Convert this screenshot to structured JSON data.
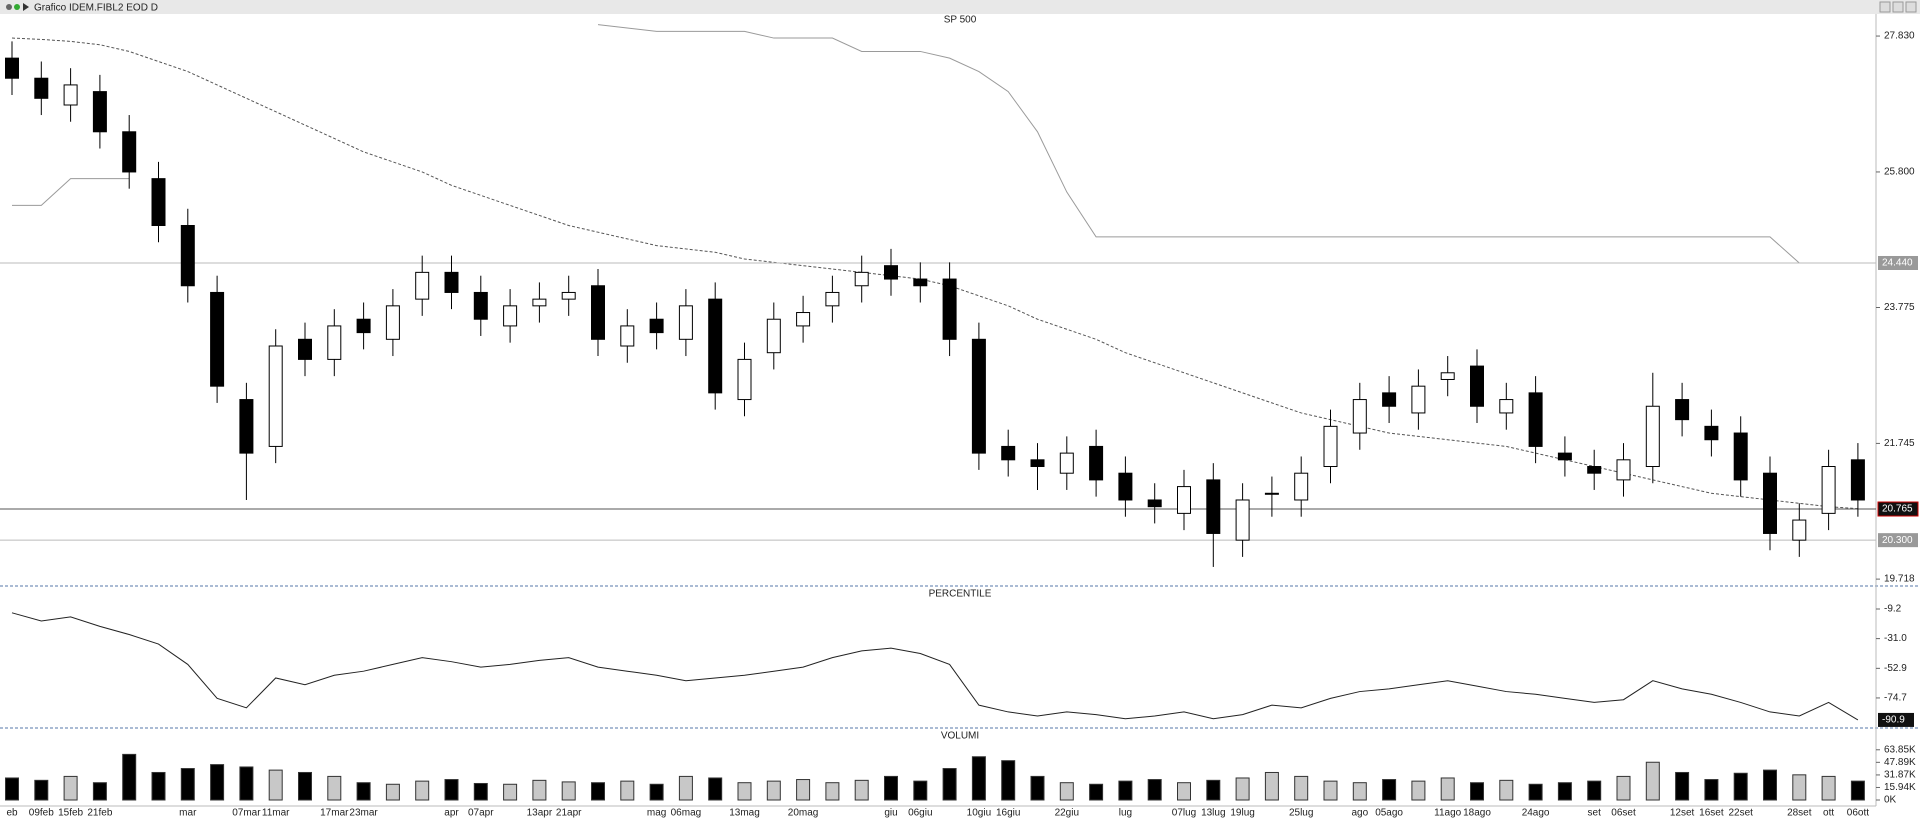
{
  "window": {
    "title": "Grafico IDEM.FIBL2 EOD D"
  },
  "chart_data": [
    {
      "type": "candlestick",
      "title": "SP 500",
      "categories": [
        "eb",
        "09feb",
        "15feb",
        "21feb",
        null,
        null,
        "mar",
        null,
        "07mar",
        "11mar",
        null,
        "17mar",
        "23mar",
        null,
        null,
        "apr",
        "07apr",
        null,
        "13apr",
        "21apr",
        null,
        null,
        "mag",
        "06mag",
        null,
        "13mag",
        null,
        "20mag",
        null,
        null,
        "giu",
        "06giu",
        null,
        "10giu",
        "16giu",
        null,
        "22giu",
        null,
        "lug",
        null,
        "07lug",
        "13lug",
        "19lug",
        null,
        "25lug",
        null,
        "ago",
        "05ago",
        null,
        "11ago",
        "18ago",
        null,
        "24ago",
        null,
        "set",
        "06set",
        null,
        "12set",
        "16set",
        "22set",
        null,
        "28set",
        "ott",
        "06ott"
      ],
      "open": [
        27.5,
        27.2,
        26.8,
        27.0,
        26.4,
        25.7,
        25.0,
        24.0,
        22.4,
        21.7,
        23.3,
        23.0,
        23.6,
        23.3,
        23.9,
        24.3,
        24.0,
        23.5,
        23.8,
        23.9,
        24.1,
        23.2,
        23.6,
        23.3,
        23.9,
        22.4,
        23.1,
        23.5,
        23.8,
        24.1,
        24.4,
        24.2,
        24.2,
        23.3,
        21.7,
        21.5,
        21.3,
        21.7,
        21.3,
        20.9,
        20.7,
        21.2,
        20.3,
        21.0,
        20.9,
        21.4,
        21.9,
        22.5,
        22.2,
        22.7,
        22.9,
        22.2,
        22.5,
        21.6,
        21.4,
        21.2,
        21.4,
        22.4,
        22.0,
        21.9,
        21.3,
        20.3,
        20.7,
        21.5
      ],
      "high": [
        27.75,
        27.45,
        27.35,
        27.25,
        26.65,
        25.95,
        25.25,
        24.25,
        22.65,
        23.45,
        23.55,
        23.75,
        23.85,
        24.05,
        24.55,
        24.55,
        24.25,
        24.05,
        24.15,
        24.25,
        24.35,
        23.75,
        23.85,
        24.05,
        24.15,
        23.25,
        23.85,
        23.95,
        24.25,
        24.55,
        24.65,
        24.45,
        24.45,
        23.55,
        21.95,
        21.75,
        21.85,
        21.95,
        21.55,
        21.15,
        21.35,
        21.45,
        21.15,
        21.25,
        21.55,
        22.25,
        22.65,
        22.75,
        22.85,
        23.05,
        23.15,
        22.65,
        22.75,
        21.85,
        21.65,
        21.75,
        22.8,
        22.65,
        22.25,
        22.15,
        21.55,
        20.85,
        21.65,
        21.75
      ],
      "low": [
        26.95,
        26.65,
        26.55,
        26.15,
        25.55,
        24.75,
        23.85,
        22.35,
        20.9,
        21.45,
        22.75,
        22.75,
        23.15,
        23.05,
        23.65,
        23.75,
        23.35,
        23.25,
        23.55,
        23.65,
        23.05,
        22.95,
        23.15,
        23.05,
        22.25,
        22.15,
        22.85,
        23.25,
        23.55,
        23.85,
        23.95,
        23.85,
        23.05,
        21.35,
        21.25,
        21.05,
        21.05,
        20.95,
        20.65,
        20.55,
        20.45,
        19.9,
        20.05,
        20.65,
        20.65,
        21.15,
        21.65,
        22.05,
        21.95,
        22.45,
        22.05,
        21.95,
        21.45,
        21.25,
        21.05,
        20.95,
        21.15,
        21.85,
        21.55,
        20.95,
        20.15,
        20.05,
        20.45,
        20.65
      ],
      "close": [
        27.2,
        26.9,
        27.1,
        26.4,
        25.8,
        25.0,
        24.1,
        22.6,
        21.6,
        23.2,
        23.0,
        23.5,
        23.4,
        23.8,
        24.3,
        24.0,
        23.6,
        23.8,
        23.9,
        24.0,
        23.3,
        23.5,
        23.4,
        23.8,
        22.5,
        23.0,
        23.6,
        23.7,
        24.0,
        24.3,
        24.2,
        24.1,
        23.3,
        21.6,
        21.5,
        21.4,
        21.6,
        21.2,
        20.9,
        20.8,
        21.1,
        20.4,
        20.9,
        21.0,
        21.3,
        22.0,
        22.4,
        22.3,
        22.6,
        22.8,
        22.3,
        22.4,
        21.7,
        21.5,
        21.3,
        21.5,
        22.3,
        22.1,
        21.8,
        21.2,
        20.4,
        20.6,
        21.4,
        20.9
      ],
      "ma": [
        27.8,
        27.78,
        27.75,
        27.7,
        27.6,
        27.45,
        27.3,
        27.1,
        26.9,
        26.7,
        26.5,
        26.3,
        26.1,
        25.95,
        25.8,
        25.6,
        25.45,
        25.3,
        25.15,
        25.0,
        24.9,
        24.8,
        24.7,
        24.65,
        24.6,
        24.5,
        24.45,
        24.4,
        24.35,
        24.3,
        24.25,
        24.2,
        24.1,
        23.95,
        23.8,
        23.6,
        23.45,
        23.3,
        23.1,
        22.95,
        22.8,
        22.65,
        22.5,
        22.35,
        22.2,
        22.1,
        22.0,
        21.9,
        21.85,
        21.8,
        21.75,
        21.7,
        21.6,
        21.5,
        21.4,
        21.3,
        21.2,
        21.1,
        21.0,
        20.95,
        20.9,
        20.85,
        20.8,
        20.77
      ],
      "upper": [
        null,
        null,
        null,
        null,
        null,
        null,
        null,
        null,
        null,
        null,
        null,
        null,
        null,
        null,
        null,
        null,
        null,
        null,
        null,
        null,
        28.0,
        27.95,
        27.9,
        27.9,
        27.9,
        27.9,
        27.8,
        27.8,
        27.8,
        27.6,
        27.6,
        27.6,
        27.5,
        27.3,
        27.0,
        26.4,
        25.5,
        24.83,
        24.83,
        24.83,
        24.83,
        24.83,
        24.83,
        24.83,
        24.83,
        24.83,
        24.83,
        24.83,
        24.83,
        24.83,
        24.83,
        24.83,
        24.83,
        24.83,
        24.83,
        24.83,
        24.83,
        24.83,
        24.83,
        24.83,
        24.83,
        24.44,
        24.44,
        24.44
      ],
      "lower": [
        25.3,
        25.3,
        25.7,
        25.7,
        25.7,
        null,
        null,
        null,
        null,
        null,
        null,
        null,
        null,
        null,
        null,
        null,
        null,
        null,
        null,
        null,
        null,
        null,
        null,
        null,
        null,
        null,
        null,
        null,
        null,
        null,
        null,
        null,
        null,
        null,
        null,
        null,
        null,
        null,
        null,
        null,
        null,
        null,
        null,
        null,
        null,
        null,
        null,
        null,
        null,
        null,
        null,
        null,
        null,
        null,
        null,
        null,
        null,
        null,
        null,
        null,
        null,
        null,
        null,
        null
      ],
      "up_color": "#ffffff",
      "down_color": "#000000",
      "ma_color": "#555555",
      "band_color": "#9a9a9a",
      "ylim": [
        19.63,
        28.01
      ],
      "yticks": [
        {
          "value": 27.83,
          "label": "27.830"
        },
        {
          "value": 25.8,
          "label": "25.800"
        },
        {
          "value": 23.775,
          "label": "23.775"
        },
        {
          "value": 21.745,
          "label": "21.745"
        },
        {
          "value": 19.718,
          "label": "19.718"
        }
      ],
      "markers": [
        {
          "value": 24.44,
          "label": "24.440"
        },
        {
          "value": 20.765,
          "label": "20.765"
        },
        {
          "value": 20.3,
          "label": "20.300"
        }
      ]
    },
    {
      "type": "line",
      "title": "PERCENTILE",
      "values": [
        -12,
        -18,
        -15,
        -22,
        -28,
        -35,
        -50,
        -75,
        -82,
        -60,
        -65,
        -58,
        -55,
        -50,
        -45,
        -48,
        -52,
        -50,
        -47,
        -45,
        -52,
        -55,
        -58,
        -62,
        -60,
        -58,
        -55,
        -52,
        -45,
        -40,
        -38,
        -42,
        -50,
        -80,
        -85,
        -88,
        -85,
        -87,
        -90,
        -88,
        -85,
        -90,
        -87,
        -80,
        -82,
        -75,
        -70,
        -68,
        -65,
        -62,
        -66,
        -70,
        -72,
        -75,
        -78,
        -76,
        -62,
        -68,
        -72,
        -78,
        -85,
        -88,
        -78,
        -90.9
      ],
      "color": "#222222",
      "ylim": [
        -96.1,
        4.8
      ],
      "yticks": [
        -9.2,
        {
          "value": -31,
          "label": "-31.0"
        },
        -52.9,
        -74.7
      ],
      "marker": -90.9
    },
    {
      "type": "bar",
      "title": "VOLUMI",
      "values": [
        28,
        25,
        30,
        22,
        58,
        35,
        40,
        45,
        42,
        38,
        35,
        30,
        22,
        20,
        24,
        26,
        21,
        20,
        25,
        23,
        22,
        24,
        20,
        30,
        28,
        22,
        24,
        26,
        22,
        25,
        30,
        24,
        40,
        55,
        50,
        30,
        22,
        20,
        24,
        26,
        22,
        25,
        28,
        35,
        30,
        24,
        22,
        26,
        24,
        28,
        22,
        25,
        20,
        22,
        24,
        30,
        48,
        35,
        26,
        34,
        38,
        32,
        30,
        24
      ],
      "up_color": "#c8c8c8",
      "down_color": "#000000",
      "ylim": [
        0,
        89
      ],
      "yticks": [
        {
          "value": 63.85,
          "label": "63.85K"
        },
        {
          "value": 47.89,
          "label": "47.89K"
        },
        {
          "value": 31.87,
          "label": "31.87K"
        },
        {
          "value": 15.94,
          "label": "15.94K"
        },
        {
          "value": 0,
          "label": "0K"
        }
      ]
    }
  ]
}
